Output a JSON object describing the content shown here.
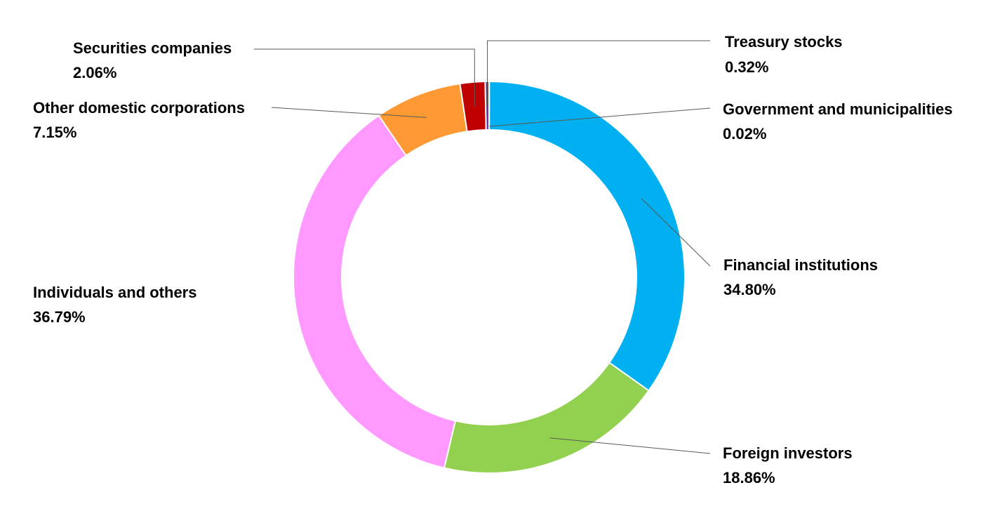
{
  "chart_data": {
    "type": "pie",
    "variant": "donut",
    "title": "",
    "series": [
      {
        "name": "Government and municipalities",
        "value": 0.02,
        "label": "0.02%",
        "color": "#7030A0"
      },
      {
        "name": "Financial institutions",
        "value": 34.8,
        "label": "34.80%",
        "color": "#00B0F0"
      },
      {
        "name": "Foreign investors",
        "value": 18.86,
        "label": "18.86%",
        "color": "#92D050"
      },
      {
        "name": "Individuals and others",
        "value": 36.79,
        "label": "36.79%",
        "color": "#FF99FF"
      },
      {
        "name": "Other domestic corporations",
        "value": 7.15,
        "label": "7.15%",
        "color": "#FF9933"
      },
      {
        "name": "Securities companies",
        "value": 2.06,
        "label": "2.06%",
        "color": "#C00000"
      },
      {
        "name": "Treasury stocks",
        "value": 0.32,
        "label": "0.32%",
        "color": "#7030A0"
      }
    ],
    "start_angle": "top",
    "direction": "clockwise",
    "legend": "none"
  }
}
